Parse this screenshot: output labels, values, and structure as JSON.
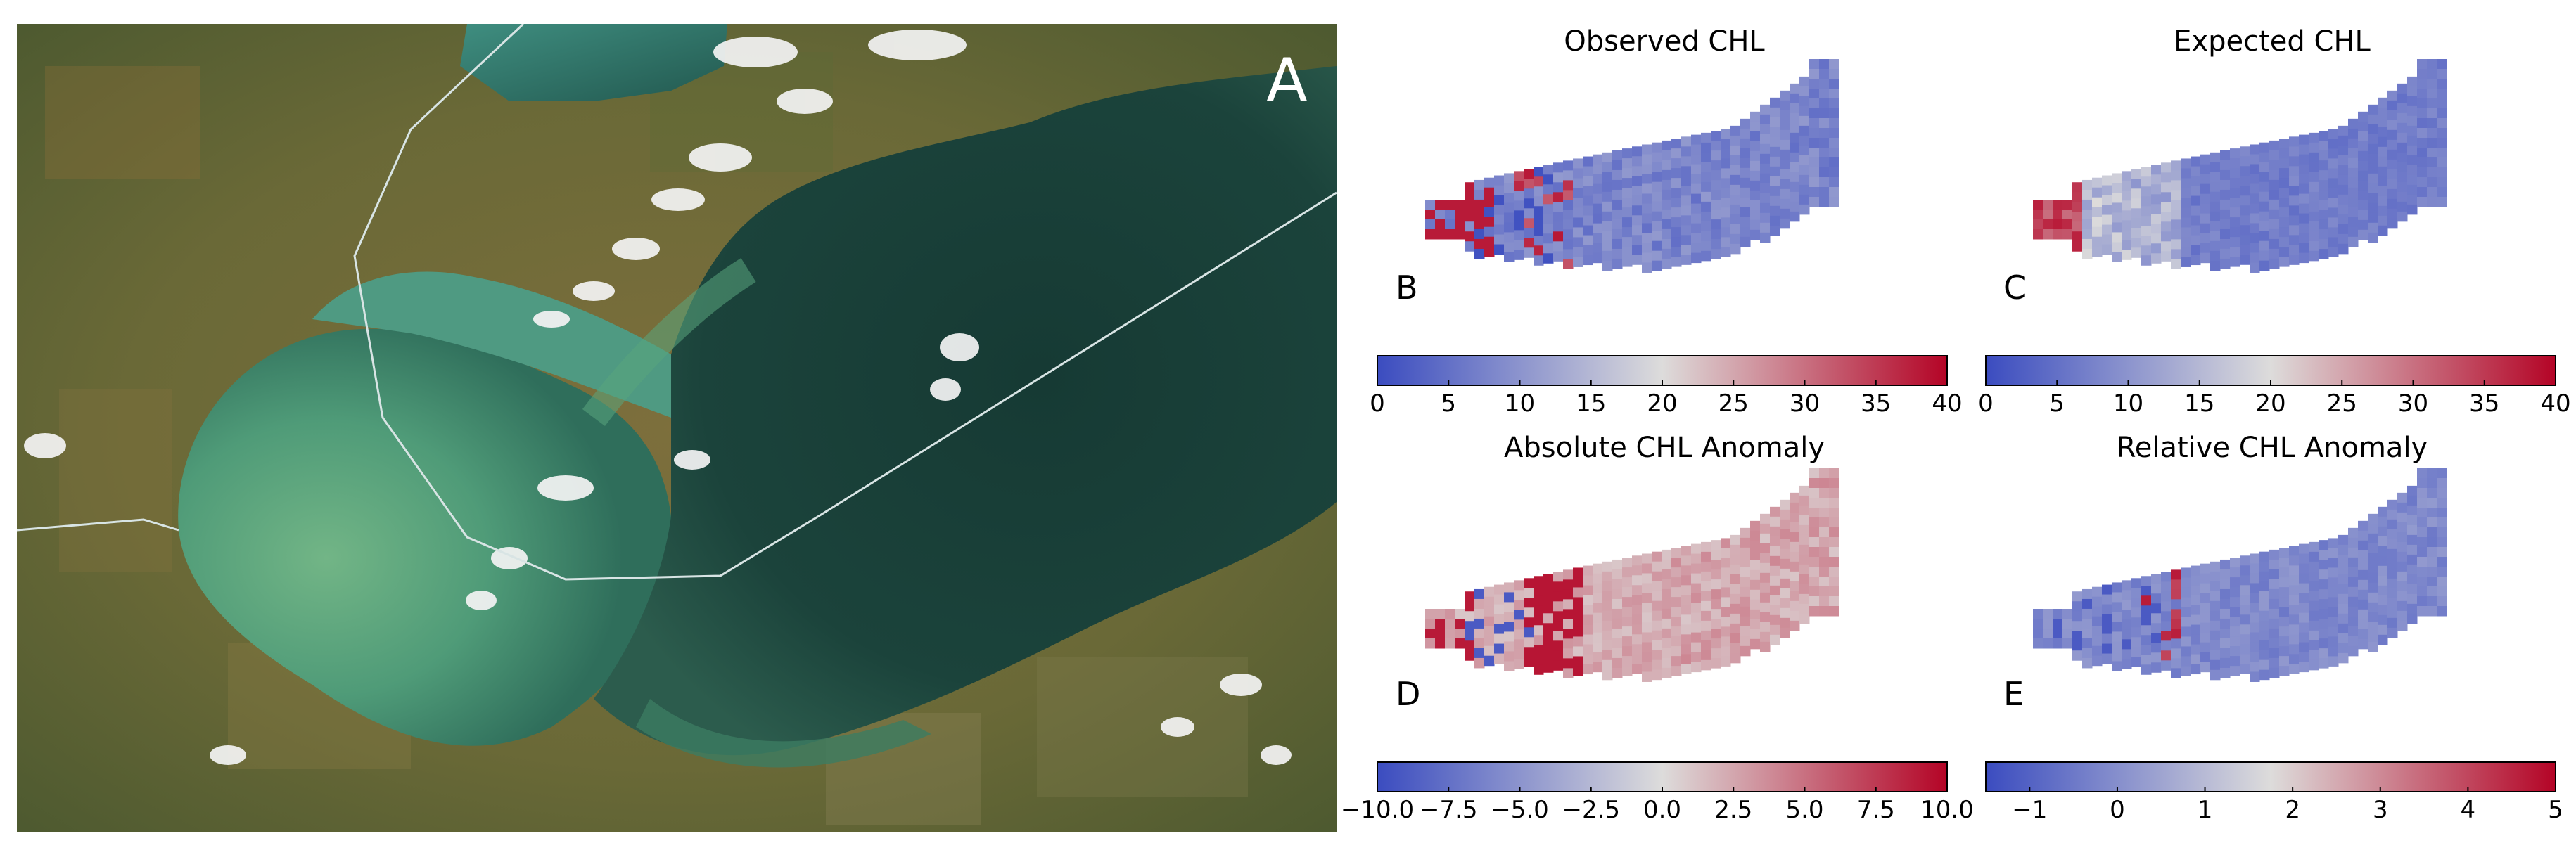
{
  "panels": {
    "A": {
      "letter": "A"
    },
    "B": {
      "letter": "B",
      "title": "Observed CHL",
      "colorbar": {
        "ticks": [
          "0",
          "5",
          "10",
          "15",
          "20",
          "25",
          "30",
          "35",
          "40"
        ],
        "range": [
          0,
          40
        ]
      }
    },
    "C": {
      "letter": "C",
      "title": "Expected CHL",
      "colorbar": {
        "ticks": [
          "0",
          "5",
          "10",
          "15",
          "20",
          "25",
          "30",
          "35",
          "40"
        ],
        "range": [
          0,
          40
        ]
      }
    },
    "D": {
      "letter": "D",
      "title": "Absolute CHL Anomaly",
      "colorbar": {
        "ticks": [
          "−10.0",
          "−7.5",
          "−5.0",
          "−2.5",
          "0.0",
          "2.5",
          "5.0",
          "7.5",
          "10.0"
        ],
        "range": [
          -10,
          10
        ]
      }
    },
    "E": {
      "letter": "E",
      "title": "Relative CHL Anomaly",
      "colorbar": {
        "ticks": [
          "−1",
          "0",
          "1",
          "2",
          "3",
          "4",
          "5"
        ],
        "range": [
          -1.5,
          5
        ]
      }
    }
  },
  "colors": {
    "cmap_low": "#3b4cc0",
    "cmap_mid": "#dddcdb",
    "cmap_high": "#b40426",
    "lake_dark": "#11302b",
    "lake_mid": "#1e4e44",
    "lake_green": "#5aa57e",
    "land": "#6b6a38"
  }
}
